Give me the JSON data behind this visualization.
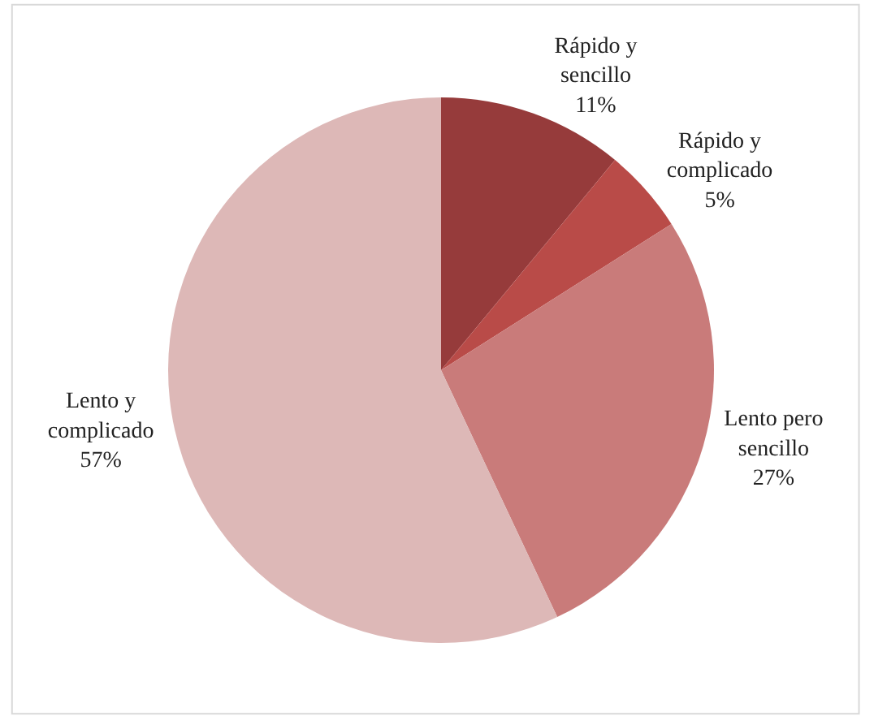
{
  "chart_data": {
    "type": "pie",
    "categories": [
      "Rápido y sencillo",
      "Rápido y complicado",
      "Lento pero sencillo",
      "Lento y complicado"
    ],
    "values": [
      11,
      5,
      27,
      57
    ],
    "value_labels": [
      "11%",
      "5%",
      "27%",
      "57%"
    ],
    "colors": [
      "#963b3b",
      "#b94b48",
      "#c97b7a",
      "#ddb8b7"
    ],
    "legend": false
  }
}
